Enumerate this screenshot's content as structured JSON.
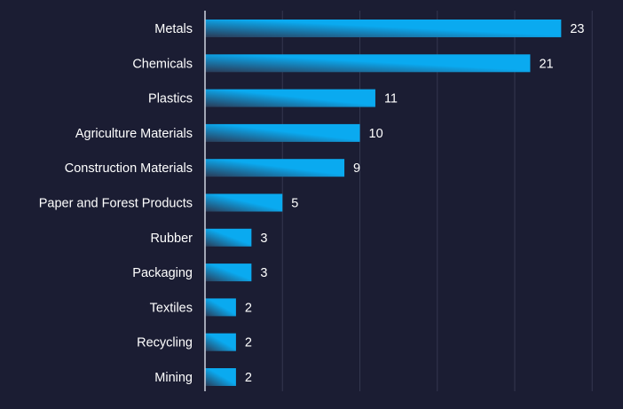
{
  "colors": {
    "background": "#1b1d33",
    "bar_start": "#2a3a55",
    "bar_end": "#0aaaf0",
    "grid": "#34374f",
    "axis": "#d0d3e0",
    "text": "#ffffff"
  },
  "chart_data": {
    "type": "bar",
    "orientation": "horizontal",
    "categories": [
      "Metals",
      "Chemicals",
      "Plastics",
      "Agriculture Materials",
      "Construction Materials",
      "Paper and Forest Products",
      "Rubber",
      "Packaging",
      "Textiles",
      "Recycling",
      "Mining"
    ],
    "values": [
      23,
      21,
      11,
      10,
      9,
      5,
      3,
      3,
      2,
      2,
      2
    ],
    "title": "",
    "xlabel": "",
    "ylabel": "",
    "xlim": [
      0,
      25
    ],
    "grid": true,
    "data_labels": true
  }
}
